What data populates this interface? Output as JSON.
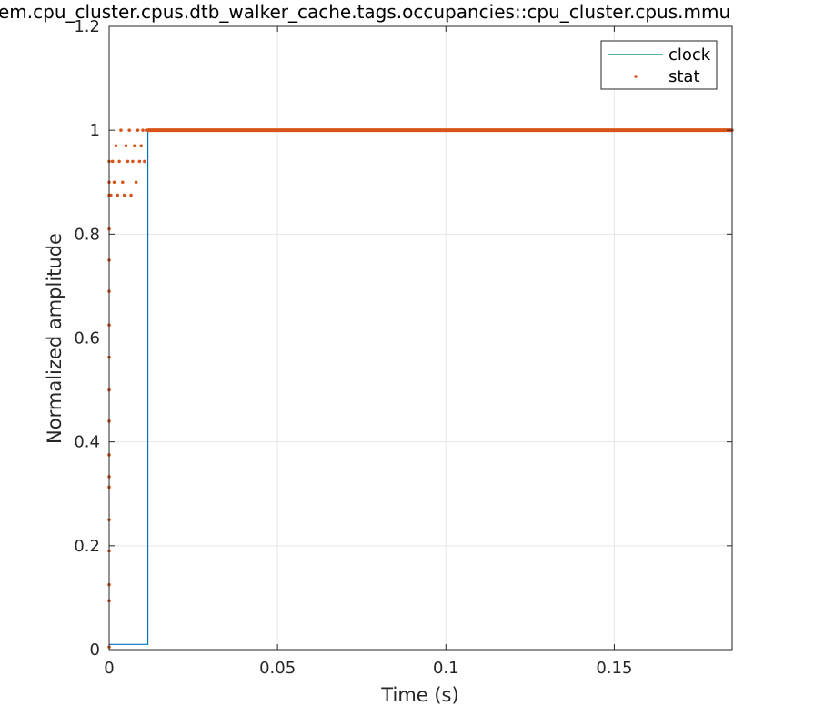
{
  "chart_data": {
    "type": "line",
    "title": "em.cpu_cluster.cpus.dtb_walker_cache.tags.occupancies::cpu_cluster.cpus.mmu",
    "xlabel": "Time (s)",
    "ylabel": "Normalized amplitude",
    "xlim": [
      0,
      0.185
    ],
    "ylim": [
      0,
      1.2
    ],
    "xticks": [
      0,
      0.05,
      0.1,
      0.15
    ],
    "xtick_labels": [
      "0",
      "0.05",
      "0.1",
      "0.15"
    ],
    "yticks": [
      0,
      0.2,
      0.4,
      0.6,
      0.8,
      1,
      1.2
    ],
    "ytick_labels": [
      "0",
      "0.2",
      "0.4",
      "0.6",
      "0.8",
      "1",
      "1.2"
    ],
    "grid": true,
    "legend_position": "top-right",
    "series": [
      {
        "name": "clock",
        "style": "line",
        "color": "#0072BD",
        "legend_color": "#008080",
        "x": [
          0,
          0.0115,
          0.0115,
          0.185
        ],
        "y": [
          0.01,
          0.01,
          1,
          1
        ]
      },
      {
        "name": "stat",
        "style": "dots",
        "color": "#D95319",
        "x": [
          0,
          0,
          0,
          0,
          0,
          0,
          0,
          0,
          0,
          0,
          0,
          0,
          0,
          0,
          0,
          0,
          0,
          0,
          0.0005,
          0.001,
          0.0015,
          0.002,
          0.0025,
          0.003,
          0.0035,
          0.004,
          0.0045,
          0.005,
          0.0055,
          0.006,
          0.0065,
          0.007,
          0.0075,
          0.008,
          0.0085,
          0.009,
          0.0095,
          0.01,
          0.0105,
          0.011,
          0.0115,
          0.185
        ],
        "y": [
          0.005,
          0.094,
          0.125,
          0.19,
          0.25,
          0.313,
          0.333,
          0.375,
          0.44,
          0.5,
          0.563,
          0.625,
          0.69,
          0.75,
          0.81,
          0.875,
          0.9,
          0.94,
          0.875,
          0.94,
          0.9,
          0.97,
          0.875,
          0.94,
          1,
          0.9,
          0.875,
          0.97,
          0.94,
          1,
          0.875,
          0.94,
          0.97,
          0.9,
          1,
          0.94,
          0.97,
          1,
          0.94,
          1,
          1,
          1
        ]
      }
    ]
  }
}
